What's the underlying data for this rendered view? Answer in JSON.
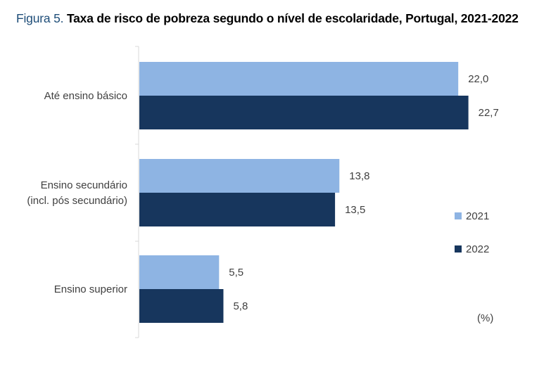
{
  "title": {
    "prefix": "Figura 5.",
    "main": "Taxa de risco de pobreza segundo o nível de escolaridade, Portugal, 2021-2022"
  },
  "chart_data": {
    "type": "bar",
    "orientation": "horizontal",
    "categories": [
      [
        "Até ensino básico"
      ],
      [
        "Ensino secundário",
        "(incl. pós secundário)"
      ],
      [
        "Ensino superior"
      ]
    ],
    "series": [
      {
        "name": "2021",
        "color": "#8eb4e3",
        "values": [
          22.0,
          13.8,
          5.5
        ],
        "labels": [
          "22,0",
          "13,8",
          "5,5"
        ]
      },
      {
        "name": "2022",
        "color": "#17365d",
        "values": [
          22.7,
          13.5,
          5.8
        ],
        "labels": [
          "22,7",
          "13,5",
          "5,8"
        ]
      }
    ],
    "unit": "(%)",
    "xlim": [
      0,
      24
    ],
    "grid": false,
    "legend": "right"
  }
}
